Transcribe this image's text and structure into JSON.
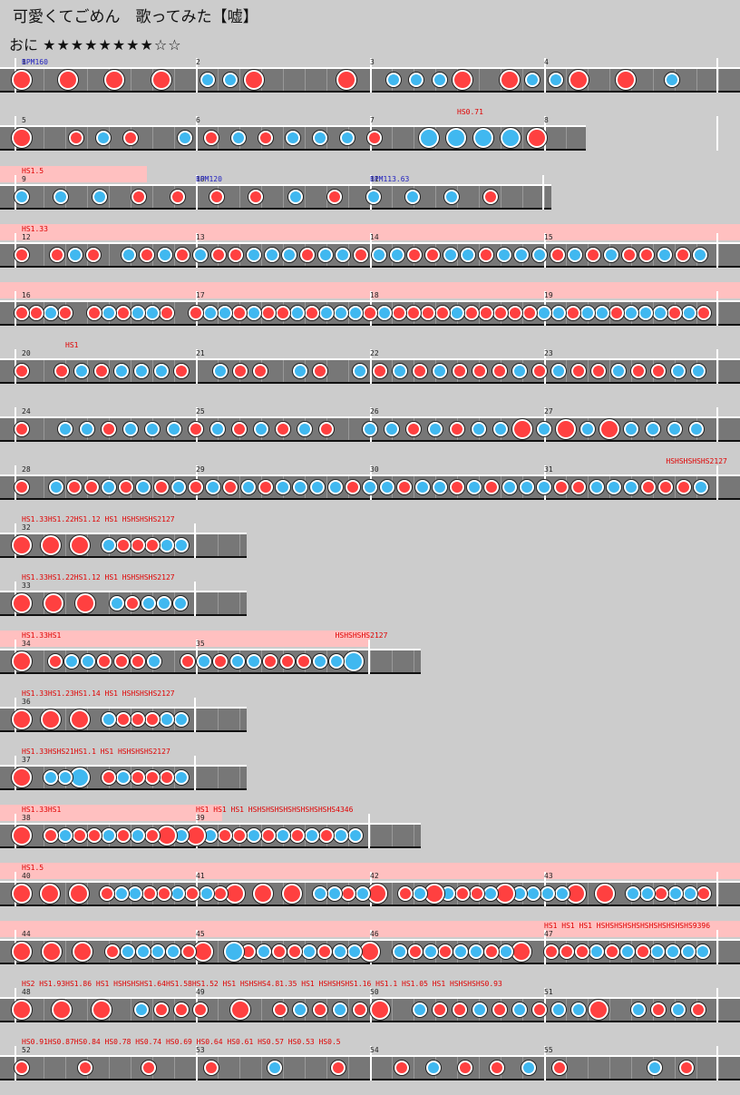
{
  "header": {
    "title": "可愛くてごめん　歌ってみた【嘘】",
    "difficulty": "おに",
    "stars": "★★★★★★★★☆☆"
  },
  "rows": [
    {
      "y": 54,
      "bars": [
        1,
        2,
        3,
        4
      ],
      "hs": [],
      "bpm": [
        {
          "m": 0,
          "t": "BPM160"
        }
      ],
      "notes": "DxDxDxDxkkDxxxDxkkkDxDkkDxDxkx"
    },
    {
      "y": 118,
      "bars": [
        5,
        6,
        7,
        8
      ],
      "w": 3.2,
      "hs": [
        {
          "m": 2.5,
          "t": "HS0.71"
        }
      ],
      "notes": "DxdkdxkdkdkkkdxKKKKD"
    },
    {
      "y": 183,
      "bars": [
        9,
        10,
        11
      ],
      "w": 3.0,
      "band": [
        0,
        0.72
      ],
      "hs": [
        {
          "m": 0,
          "t": "HS1.5"
        }
      ],
      "bpm": [
        {
          "m": 1,
          "t": "BPM120"
        },
        {
          "m": 2,
          "t": "BPM113.63"
        }
      ],
      "notes": "kkkddddkdkkkd"
    },
    {
      "y": 247,
      "bars": [
        12,
        13,
        14,
        15
      ],
      "band": [
        0,
        4.2
      ],
      "hs": [
        {
          "m": 0,
          "t": "HS1.33"
        }
      ],
      "notes": "dxdkdxkdkdkddkkkdkkdkkddkkdkkkdkdkddkdk"
    },
    {
      "y": 311,
      "bars": [
        16,
        17,
        18,
        19
      ],
      "band": [
        0,
        4.2
      ],
      "hs": [],
      "notes": "ddkdxdkdkkdxdkkdkddkdkkkdkddddkdddddkkdkkdkkkdkd"
    },
    {
      "y": 375,
      "bars": [
        20,
        21,
        22,
        23
      ],
      "hs": [
        {
          "m": 0.25,
          "t": "HS1"
        }
      ],
      "notes": "dxdkdkkkdxkddxkdxkdkdkdddkdkddkddkk"
    },
    {
      "y": 439,
      "bars": [
        24,
        25,
        26,
        27
      ],
      "hs": [],
      "notes": "dxkkdkkkdkdkdkdxkkdkdkkDkDkDkkkk"
    },
    {
      "y": 503,
      "bars": [
        28,
        29,
        30,
        31
      ],
      "hs": [
        {
          "m": 3.7,
          "t": "HSHSHSHSHS2127"
        }
      ],
      "notes": "dxkddkdkdkdkdkdkkkkdkkdkkdkdkkkddkkkdddk"
    },
    {
      "y": 567,
      "bars": [
        32
      ],
      "w": 1.25,
      "hs": [
        {
          "m": 0,
          "t": "HS1.33HS1.22HS1.12 HS1 HSHSHSHS2127"
        }
      ],
      "notes": "DxDxDxkdddkk"
    },
    {
      "y": 631,
      "bars": [
        33
      ],
      "w": 1.25,
      "hs": [
        {
          "m": 0,
          "t": "HS1.33HS1.22HS1.12 HS1 HSHSHSHS2127"
        }
      ],
      "notes": "DxDxDxkdkkk"
    },
    {
      "y": 695,
      "bars": [
        34,
        35
      ],
      "w": 2.25,
      "band": [
        0,
        2.0
      ],
      "hs": [
        {
          "m": 0,
          "t": "HS1.33HS1"
        },
        {
          "m": 1.8,
          "t": "HSHSHSHS2127"
        }
      ],
      "notes": "DxdkkdddkxdkdkkdddkkK"
    },
    {
      "y": 759,
      "bars": [
        36
      ],
      "w": 1.25,
      "hs": [
        {
          "m": 0,
          "t": "HS1.33HS1.23HS1.14 HS1 HSHSHSHS2127"
        }
      ],
      "notes": "DxDxDxkdddkk"
    },
    {
      "y": 823,
      "bars": [
        37
      ],
      "w": 1.25,
      "hs": [
        {
          "m": 0,
          "t": "HS1.33HSHS21HS1.1  HS1  HSHSHSHS2127"
        }
      ],
      "notes": "DxkkKxdkdddk"
    },
    {
      "y": 887,
      "bars": [
        38,
        39
      ],
      "w": 2.25,
      "band": [
        0,
        1.15
      ],
      "hs": [
        {
          "m": 0,
          "t": "HS1.33HS1"
        },
        {
          "m": 1,
          "t": "HS1 HS1 HS1 HSHSHSHSHSHSHSHSHSHS4346"
        }
      ],
      "notes": "DxdkddkdkdDkDkddkdkdkdkk"
    },
    {
      "y": 951,
      "bars": [
        40,
        41,
        42,
        43
      ],
      "band": [
        0,
        4.2
      ],
      "hs": [
        {
          "m": 0,
          "t": "HS1.5"
        }
      ],
      "notes": "DxDxDxdkkddkdkdDxDxDxkkdkDxdkDkddkDkkkkDxDxkkdkkd"
    },
    {
      "y": 1015,
      "bars": [
        44,
        45,
        46,
        47
      ],
      "band": [
        0,
        4.2
      ],
      "hs": [
        {
          "m": 3,
          "t": "HS1 HS1 HS1 HSHSHSHSHSHSHSHSHSHSHS9396"
        }
      ],
      "notes": "DxDxDxdkkkkdDxKdkddkdkkDxkdkdkkdkDxdddkdkdkkkk"
    },
    {
      "y": 1079,
      "bars": [
        48,
        49,
        50,
        51
      ],
      "hs": [
        {
          "m": 0,
          "t": "HS2 HS1.93HS1.86 HS1 HSHSHSHS1.64HS1.58HS1.52 HS1 HSHSHS4.81.35 HS1 HSHSHSHS1.16 HS1.1 HS1.05 HS1 HSHSHSHS0.93"
        }
      ],
      "notes": "DxDxDxkdddxDxdkdkdDxkddkdkdkkDxkdkd"
    },
    {
      "y": 1143,
      "bars": [
        52,
        53,
        54,
        55
      ],
      "hs": [
        {
          "m": 0,
          "t": "HS0.91HS0.87HS0.84   HS0.78 HS0.74 HS0.69   HS0.64 HS0.61 HS0.57 HS0.53 HS0.5"
        }
      ],
      "notes": "dxdxdxdxkxdxdkddkdxxkd"
    }
  ]
}
